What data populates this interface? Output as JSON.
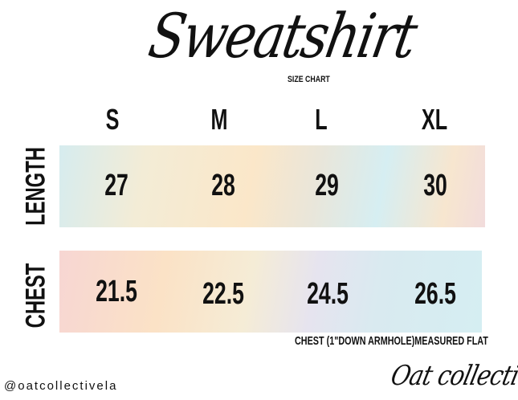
{
  "title": "Sweatshirt",
  "subtitle": "SIZE CHART",
  "sizes": [
    "S",
    "M",
    "L",
    "XL"
  ],
  "rows": [
    {
      "label": "LENGTH",
      "values": [
        "27",
        "28",
        "29",
        "30"
      ]
    },
    {
      "label": "CHEST",
      "values": [
        "21.5",
        "22.5",
        "24.5",
        "26.5"
      ]
    }
  ],
  "note": "CHEST (1\"DOWN ARMHOLE)MEASURED FLAT",
  "handle": "@oatcollectivela",
  "brand": "Oat collective",
  "colors": {
    "text": "#111111",
    "band_palette": [
      "#d6ecef",
      "#fbe7c9",
      "#f7d6d3",
      "#e6e4ef"
    ]
  }
}
